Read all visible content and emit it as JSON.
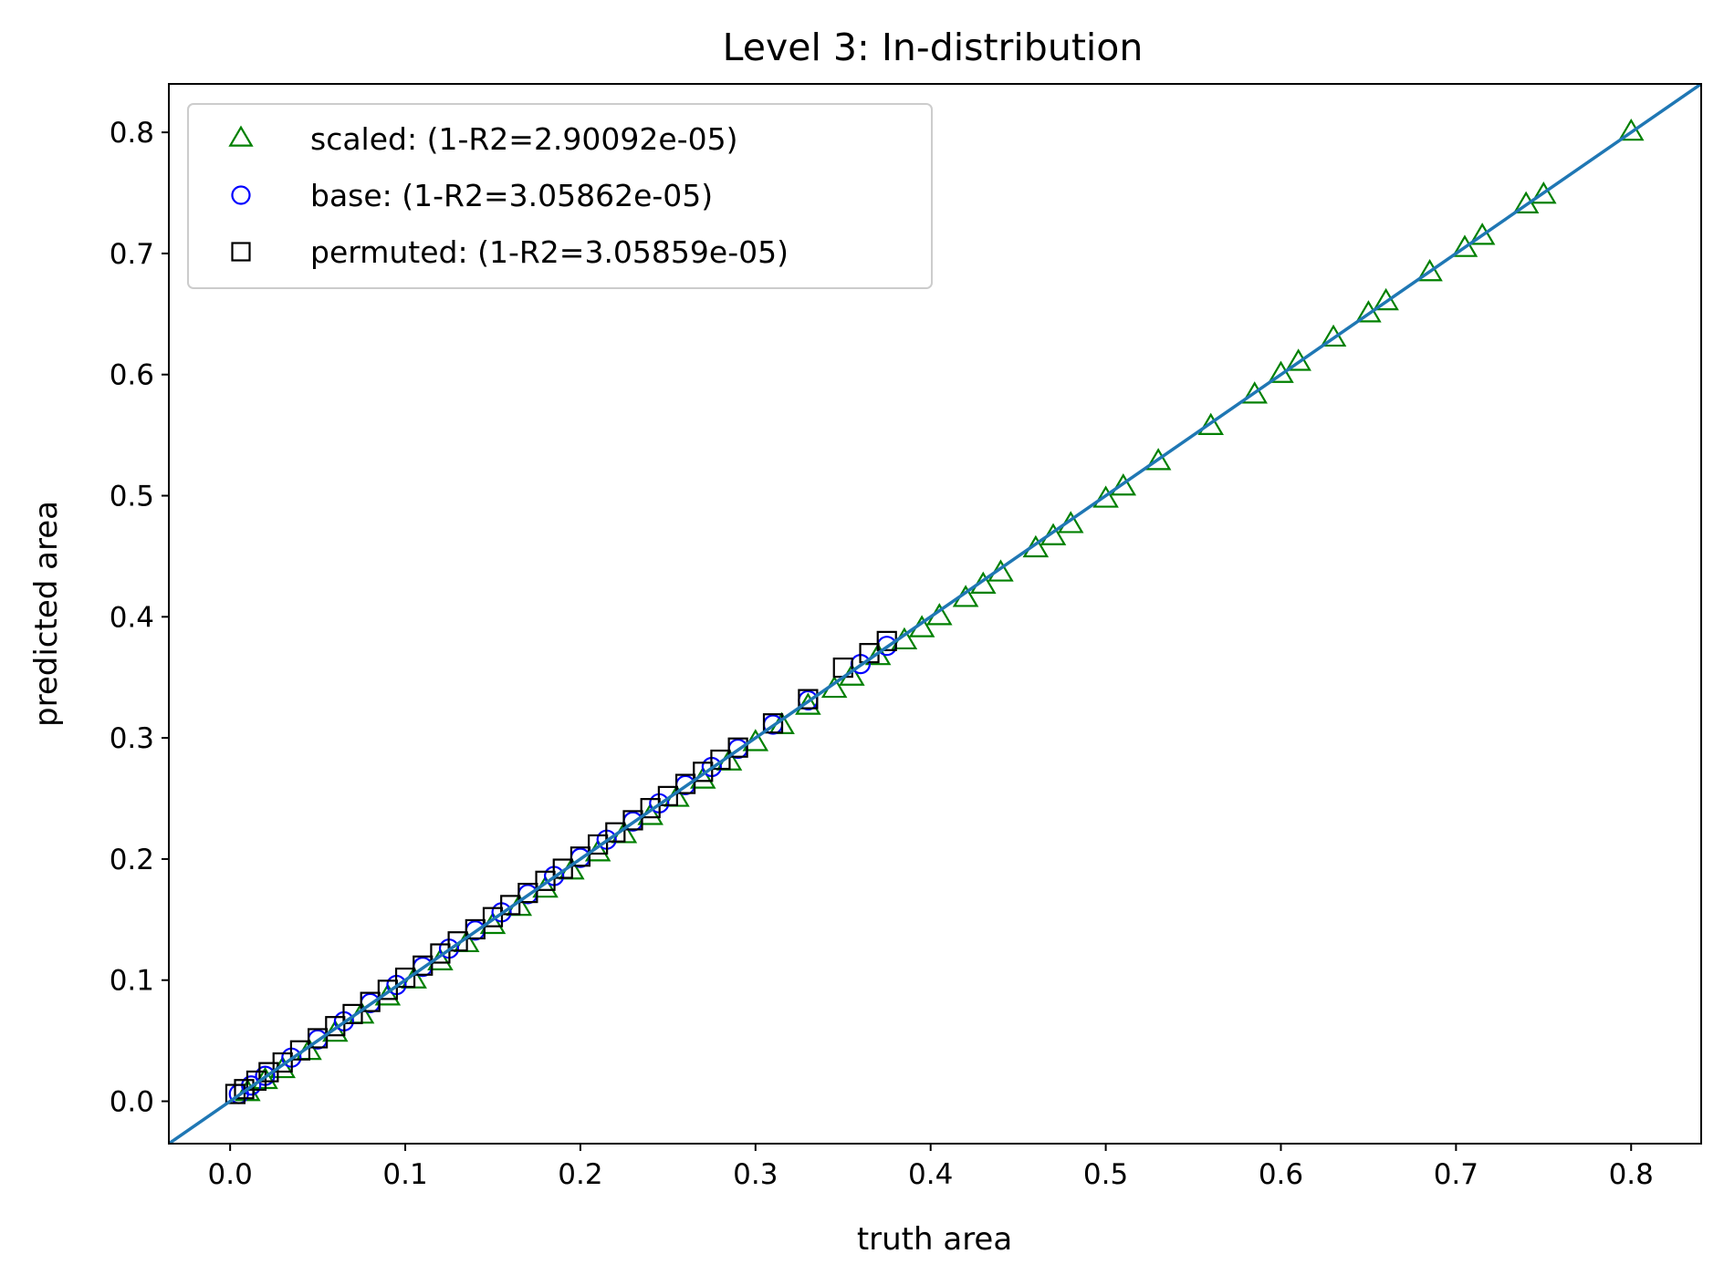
{
  "chart_data": {
    "type": "scatter",
    "title": "Level 3: In-distribution",
    "xlabel": "truth area",
    "ylabel": "predicted area",
    "xlim": [
      -0.035,
      0.84
    ],
    "ylim": [
      -0.035,
      0.84
    ],
    "xticks": [
      "0.0",
      "0.1",
      "0.2",
      "0.3",
      "0.4",
      "0.5",
      "0.6",
      "0.7",
      "0.8"
    ],
    "yticks": [
      "0.0",
      "0.1",
      "0.2",
      "0.3",
      "0.4",
      "0.5",
      "0.6",
      "0.7",
      "0.8"
    ],
    "grid": false,
    "legend_position": "top-left",
    "reference_line": {
      "x": [
        -0.035,
        0.84
      ],
      "y": [
        -0.035,
        0.84
      ],
      "color": "#1f77b4"
    },
    "series": [
      {
        "name": "scaled: (1-R2=2.90092e-05)",
        "marker": "triangle",
        "color": "#008000",
        "x": [
          0.01,
          0.02,
          0.03,
          0.045,
          0.06,
          0.075,
          0.09,
          0.105,
          0.12,
          0.135,
          0.15,
          0.165,
          0.18,
          0.195,
          0.21,
          0.225,
          0.24,
          0.255,
          0.27,
          0.285,
          0.3,
          0.315,
          0.33,
          0.345,
          0.355,
          0.37,
          0.385,
          0.395,
          0.405,
          0.42,
          0.43,
          0.44,
          0.46,
          0.47,
          0.48,
          0.5,
          0.51,
          0.53,
          0.56,
          0.585,
          0.6,
          0.61,
          0.63,
          0.65,
          0.66,
          0.685,
          0.705,
          0.715,
          0.74,
          0.75,
          0.8
        ],
        "y": [
          0.007,
          0.017,
          0.026,
          0.041,
          0.056,
          0.071,
          0.086,
          0.1,
          0.115,
          0.13,
          0.145,
          0.16,
          0.175,
          0.19,
          0.205,
          0.22,
          0.235,
          0.25,
          0.265,
          0.28,
          0.296,
          0.31,
          0.326,
          0.34,
          0.35,
          0.367,
          0.38,
          0.39,
          0.4,
          0.415,
          0.426,
          0.436,
          0.456,
          0.466,
          0.476,
          0.497,
          0.507,
          0.528,
          0.557,
          0.583,
          0.6,
          0.61,
          0.63,
          0.65,
          0.66,
          0.684,
          0.704,
          0.714,
          0.74,
          0.748,
          0.8
        ]
      },
      {
        "name": "base: (1-R2=3.05862e-05)",
        "marker": "circle",
        "color": "#0000ff",
        "x": [
          0.005,
          0.012,
          0.02,
          0.035,
          0.05,
          0.065,
          0.08,
          0.095,
          0.11,
          0.125,
          0.14,
          0.155,
          0.17,
          0.185,
          0.2,
          0.215,
          0.23,
          0.245,
          0.26,
          0.275,
          0.29,
          0.31,
          0.33,
          0.36,
          0.375
        ],
        "y": [
          0.006,
          0.013,
          0.021,
          0.036,
          0.051,
          0.066,
          0.081,
          0.096,
          0.111,
          0.126,
          0.141,
          0.156,
          0.171,
          0.186,
          0.201,
          0.216,
          0.231,
          0.246,
          0.261,
          0.276,
          0.291,
          0.311,
          0.331,
          0.361,
          0.376
        ]
      },
      {
        "name": "permuted: (1-R2=3.05859e-05)",
        "marker": "square",
        "color": "#000000",
        "x": [
          0.003,
          0.008,
          0.015,
          0.022,
          0.03,
          0.04,
          0.05,
          0.06,
          0.07,
          0.08,
          0.09,
          0.1,
          0.11,
          0.12,
          0.13,
          0.14,
          0.15,
          0.16,
          0.17,
          0.18,
          0.19,
          0.2,
          0.21,
          0.22,
          0.23,
          0.24,
          0.25,
          0.26,
          0.27,
          0.28,
          0.29,
          0.31,
          0.33,
          0.35,
          0.365,
          0.375
        ],
        "y": [
          0.006,
          0.01,
          0.017,
          0.024,
          0.032,
          0.042,
          0.052,
          0.062,
          0.072,
          0.082,
          0.092,
          0.102,
          0.112,
          0.122,
          0.132,
          0.142,
          0.152,
          0.162,
          0.172,
          0.182,
          0.192,
          0.202,
          0.212,
          0.222,
          0.232,
          0.242,
          0.252,
          0.262,
          0.272,
          0.282,
          0.292,
          0.312,
          0.332,
          0.358,
          0.37,
          0.38
        ]
      }
    ]
  }
}
